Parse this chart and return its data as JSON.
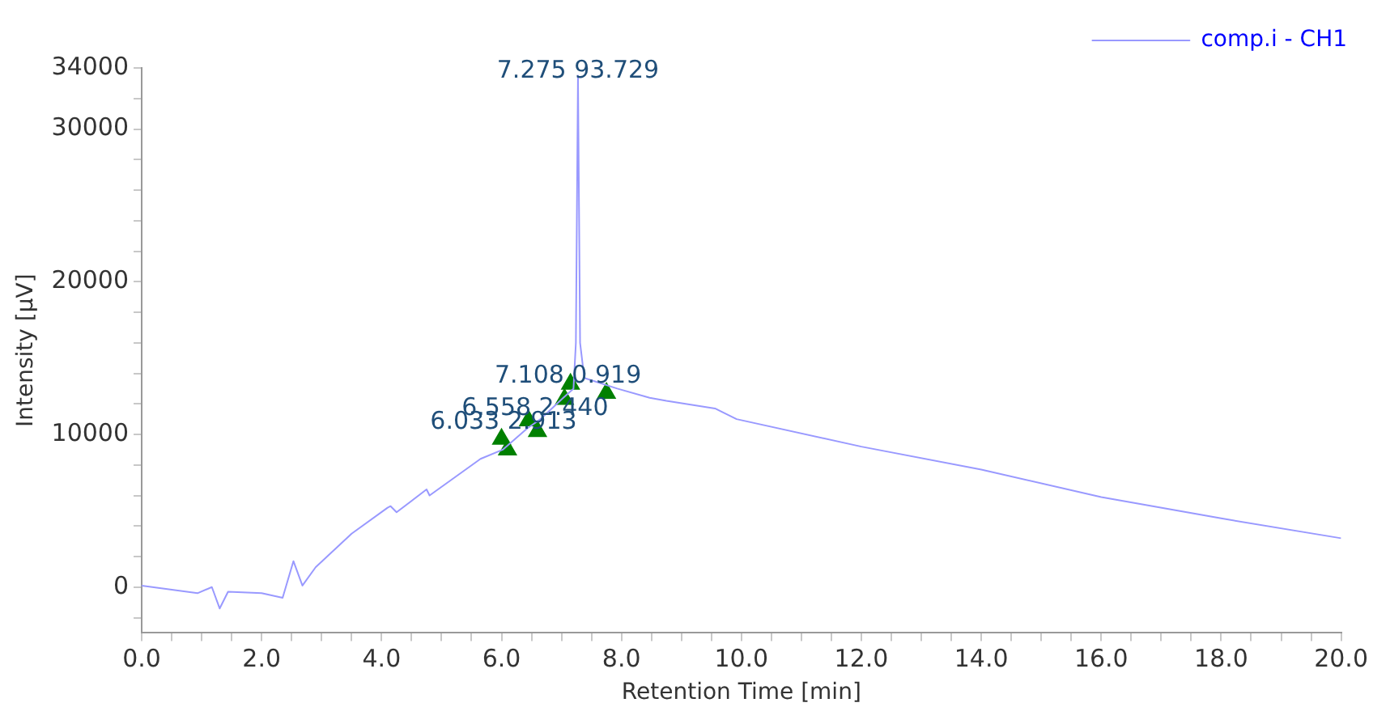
{
  "chart_data": {
    "type": "line",
    "xlabel": "Retention Time [min]",
    "ylabel": "Intensity [µV]",
    "xlim": [
      0,
      20
    ],
    "ylim": [
      -3000,
      34000
    ],
    "xticks": [
      {
        "value": 0,
        "label": "0.0"
      },
      {
        "value": 0.5,
        "label": null
      },
      {
        "value": 1,
        "label": null
      },
      {
        "value": 1.5,
        "label": null
      },
      {
        "value": 2,
        "label": "2.0"
      },
      {
        "value": 2.5,
        "label": null
      },
      {
        "value": 3,
        "label": null
      },
      {
        "value": 3.5,
        "label": null
      },
      {
        "value": 4,
        "label": "4.0"
      },
      {
        "value": 4.5,
        "label": null
      },
      {
        "value": 5,
        "label": null
      },
      {
        "value": 5.5,
        "label": null
      },
      {
        "value": 6,
        "label": "6.0"
      },
      {
        "value": 6.5,
        "label": null
      },
      {
        "value": 7,
        "label": null
      },
      {
        "value": 7.5,
        "label": null
      },
      {
        "value": 8,
        "label": "8.0"
      },
      {
        "value": 8.5,
        "label": null
      },
      {
        "value": 9,
        "label": null
      },
      {
        "value": 9.5,
        "label": null
      },
      {
        "value": 10,
        "label": "10.0"
      },
      {
        "value": 10.5,
        "label": null
      },
      {
        "value": 11,
        "label": null
      },
      {
        "value": 11.5,
        "label": null
      },
      {
        "value": 12,
        "label": "12.0"
      },
      {
        "value": 12.5,
        "label": null
      },
      {
        "value": 13,
        "label": null
      },
      {
        "value": 13.5,
        "label": null
      },
      {
        "value": 14,
        "label": "14.0"
      },
      {
        "value": 14.5,
        "label": null
      },
      {
        "value": 15,
        "label": null
      },
      {
        "value": 15.5,
        "label": null
      },
      {
        "value": 16,
        "label": "16.0"
      },
      {
        "value": 16.5,
        "label": null
      },
      {
        "value": 17,
        "label": null
      },
      {
        "value": 17.5,
        "label": null
      },
      {
        "value": 18,
        "label": "18.0"
      },
      {
        "value": 18.5,
        "label": null
      },
      {
        "value": 19,
        "label": null
      },
      {
        "value": 19.5,
        "label": null
      },
      {
        "value": 20,
        "label": "20.0"
      }
    ],
    "yticks": [
      {
        "value": -2000,
        "label": null
      },
      0,
      {
        "value": 2000,
        "label": null
      },
      {
        "value": 4000,
        "label": null
      },
      {
        "value": 6000,
        "label": null
      },
      {
        "value": 8000,
        "label": null
      },
      10000,
      {
        "value": 12000,
        "label": null
      },
      {
        "value": 14000,
        "label": null
      },
      {
        "value": 16000,
        "label": null
      },
      {
        "value": 18000,
        "label": null
      },
      20000,
      {
        "value": 22000,
        "label": null
      },
      {
        "value": 24000,
        "label": null
      },
      {
        "value": 26000,
        "label": null
      },
      {
        "value": 28000,
        "label": null
      },
      30000,
      {
        "value": 32000,
        "label": null
      },
      34000
    ],
    "grid": false,
    "legend": "top right",
    "series": [
      {
        "name": "comp.i - CH1",
        "type": "line",
        "color": "#9999ff",
        "marker": "none",
        "x": [
          0,
          0.93,
          1.17,
          1.3,
          1.44,
          2.0,
          2.35,
          2.53,
          2.68,
          2.9,
          3.5,
          4.1,
          4.15,
          4.25,
          4.75,
          4.8,
          5.65,
          6.02,
          6.43,
          6.65,
          7.03,
          7.2,
          7.24,
          7.275,
          7.31,
          7.38,
          7.93,
          8.47,
          8.75,
          9.56,
          9.92,
          12.0,
          14.0,
          16.0,
          18.0,
          20.0
        ],
        "values": [
          100,
          -400,
          0,
          -1400,
          -300,
          -400,
          -700,
          1700,
          100,
          1300,
          3500,
          5200,
          5300,
          4900,
          6400,
          6000,
          8400,
          9000,
          10400,
          11000,
          12400,
          13000,
          16000,
          33500,
          16000,
          13700,
          13000,
          12400,
          12200,
          11700,
          11000,
          9200,
          7700,
          5900,
          4500,
          3200
        ]
      },
      {
        "type": "scatter",
        "color": "#008000",
        "marker": "triangle",
        "x": [
          6.0,
          6.1,
          6.45,
          6.6,
          7.05,
          7.15,
          7.75
        ],
        "values": [
          9700,
          9000,
          10900,
          10200,
          12300,
          13300,
          12700
        ]
      }
    ],
    "annotations": [
      {
        "text": "6.033 2.913",
        "x": 6.033,
        "y": 10800
      },
      {
        "text": "6.558 2.440",
        "x": 6.558,
        "y": 11700
      },
      {
        "text": "7.108 0.919",
        "x": 7.108,
        "y": 13800
      },
      {
        "text": "7.275 93.729",
        "x": 7.275,
        "y": 33800
      }
    ]
  }
}
